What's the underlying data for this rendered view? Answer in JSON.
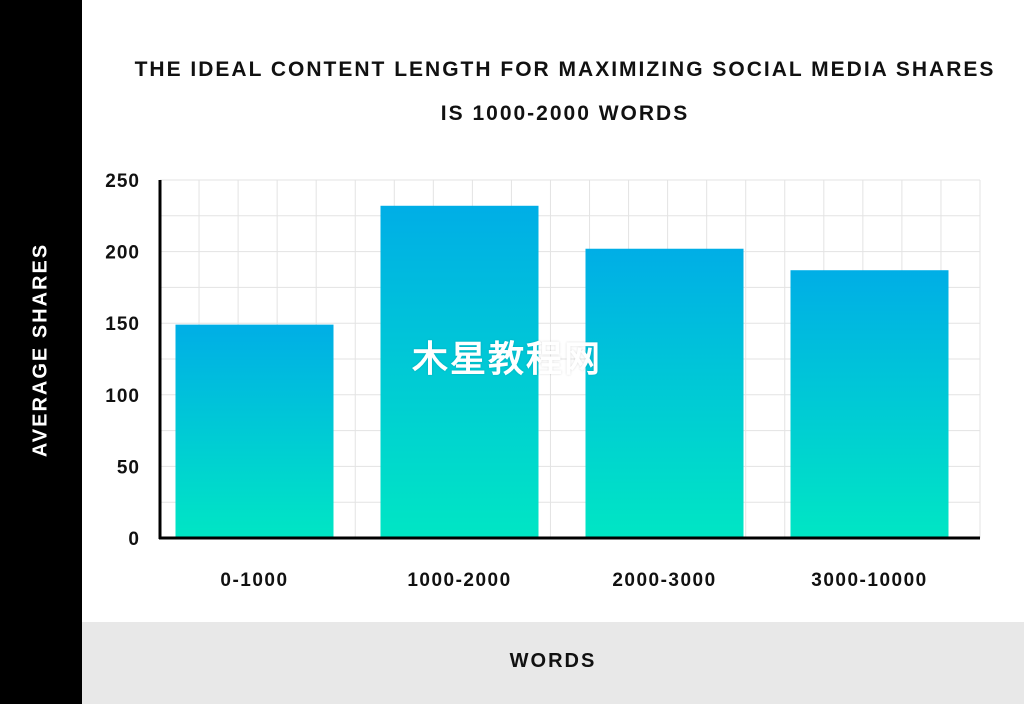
{
  "chart_data": {
    "type": "bar",
    "title": "THE IDEAL CONTENT LENGTH FOR MAXIMIZING SOCIAL MEDIA SHARES IS 1000-2000 WORDS",
    "xlabel": "WORDS",
    "ylabel": "AVERAGE SHARES",
    "categories": [
      "0-1000",
      "1000-2000",
      "2000-3000",
      "3000-10000"
    ],
    "values": [
      149,
      232,
      202,
      187
    ],
    "ylim": [
      0,
      250
    ],
    "yticks": [
      "0",
      "50",
      "100",
      "150",
      "200",
      "250"
    ],
    "grid": true,
    "colors": {
      "bar_top": "#00aee6",
      "bar_bottom": "#00e6c4",
      "grid": "#e3e3e3",
      "axis": "#000000"
    }
  },
  "watermark": "木星教程网"
}
